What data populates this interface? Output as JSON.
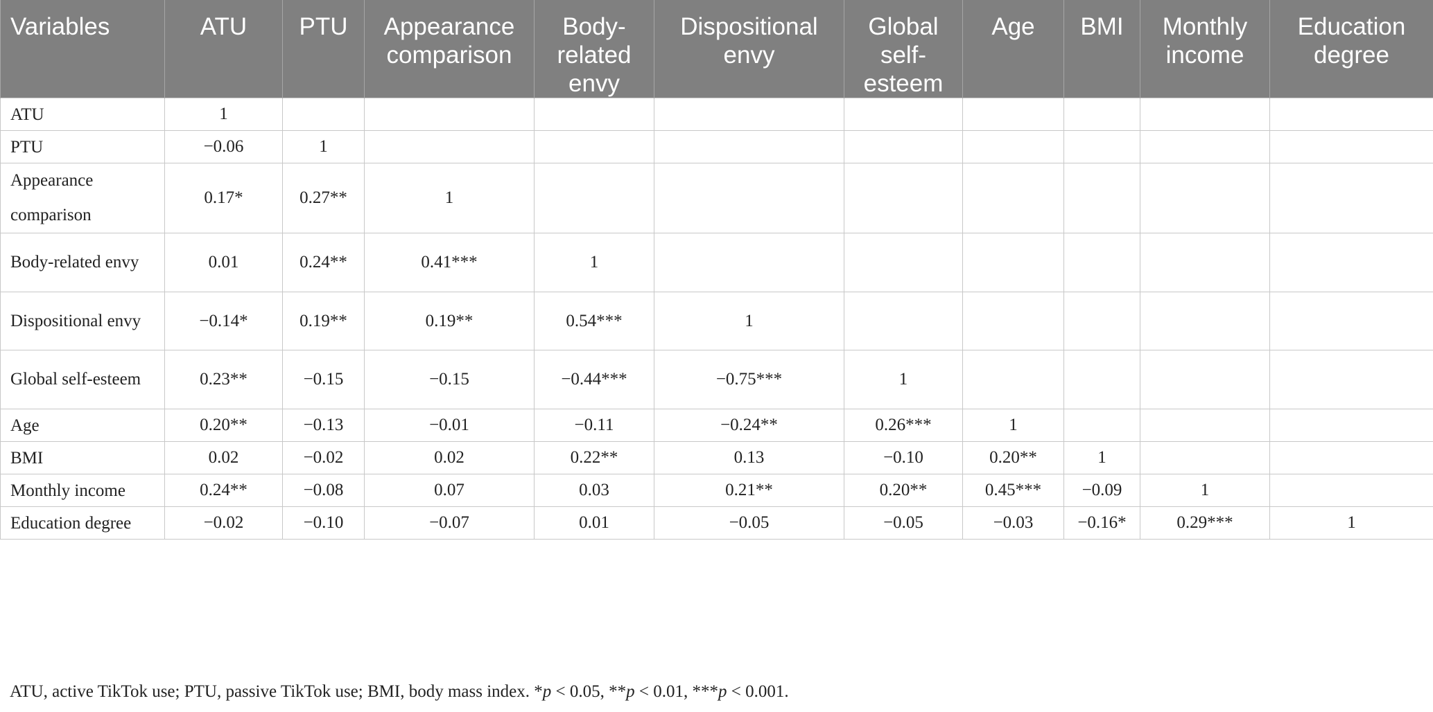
{
  "table": {
    "columns": [
      "Variables",
      "ATU",
      "PTU",
      "Appearance comparison",
      "Body-related envy",
      "Dispositional envy",
      "Global self-esteem",
      "Age",
      "BMI",
      "Monthly income",
      "Education degree"
    ],
    "rows": [
      {
        "label": "ATU",
        "cells": [
          "1",
          "",
          "",
          "",
          "",
          "",
          "",
          "",
          "",
          ""
        ]
      },
      {
        "label": "PTU",
        "cells": [
          "−0.06",
          "1",
          "",
          "",
          "",
          "",
          "",
          "",
          "",
          ""
        ]
      },
      {
        "label": "Appearance comparison",
        "cells": [
          "0.17*",
          "0.27**",
          "1",
          "",
          "",
          "",
          "",
          "",
          "",
          ""
        ]
      },
      {
        "label": "Body-related envy",
        "cells": [
          "0.01",
          "0.24**",
          "0.41***",
          "1",
          "",
          "",
          "",
          "",
          "",
          ""
        ]
      },
      {
        "label": "Dispositional envy",
        "cells": [
          "−0.14*",
          "0.19**",
          "0.19**",
          "0.54***",
          "1",
          "",
          "",
          "",
          "",
          ""
        ]
      },
      {
        "label": "Global self-esteem",
        "cells": [
          "0.23**",
          "−0.15",
          "−0.15",
          "−0.44***",
          "−0.75***",
          "1",
          "",
          "",
          "",
          ""
        ]
      },
      {
        "label": "Age",
        "cells": [
          "0.20**",
          "−0.13",
          "−0.01",
          "−0.11",
          "−0.24**",
          "0.26***",
          "1",
          "",
          "",
          ""
        ]
      },
      {
        "label": "BMI",
        "cells": [
          "0.02",
          "−0.02",
          "0.02",
          "0.22**",
          "0.13",
          "−0.10",
          "0.20**",
          "1",
          "",
          ""
        ]
      },
      {
        "label": "Monthly income",
        "cells": [
          "0.24**",
          "−0.08",
          "0.07",
          "0.03",
          "0.21**",
          "0.20**",
          "0.45***",
          "−0.09",
          "1",
          ""
        ]
      },
      {
        "label": "Education degree",
        "cells": [
          "−0.02",
          "−0.10",
          "−0.07",
          "0.01",
          "−0.05",
          "−0.05",
          "−0.03",
          "−0.16*",
          "0.29***",
          "1"
        ]
      }
    ]
  },
  "footnote": {
    "abbrev": "ATU, active TikTok use; PTU, passive TikTok use; BMI, body mass index. ",
    "sig1_pre": "*",
    "sig1_post": " < 0.05, ",
    "sig2_pre": "**",
    "sig2_post": " < 0.01, ",
    "sig3_pre": "***",
    "sig3_post": " < 0.001.",
    "p_symbol": "p"
  }
}
